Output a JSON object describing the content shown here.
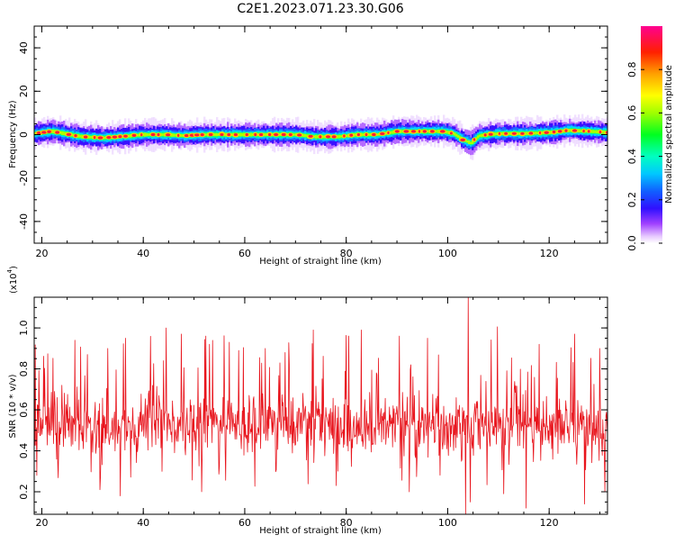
{
  "title": "C2E1.2023.071.23.30.G06",
  "chart_data": [
    {
      "type": "heatmap",
      "xlabel": "Height of straight line (km)",
      "ylabel": "Frequency (Hz)",
      "xlim": [
        18.5,
        131.5
      ],
      "ylim": [
        -50,
        50
      ],
      "xticks": [
        "20",
        "40",
        "60",
        "80",
        "100",
        "120"
      ],
      "xtick_values": [
        20,
        40,
        60,
        80,
        100,
        120
      ],
      "yticks": [
        "40",
        "20",
        "0",
        "-20",
        "-40"
      ],
      "ytick_values": [
        40,
        20,
        0,
        -20,
        -40
      ],
      "colorbar": {
        "label": "Normalized spectral amplitude",
        "range": [
          0,
          1
        ],
        "ticks": [
          "0.0",
          "0.2",
          "0.4",
          "0.6",
          "0.8"
        ],
        "tick_values": [
          0.0,
          0.2,
          0.4,
          0.6,
          0.8
        ]
      },
      "ridge_center_hz": [
        [
          18.5,
          0.5
        ],
        [
          22,
          1.5
        ],
        [
          25,
          0.2
        ],
        [
          28,
          -1.0
        ],
        [
          32,
          -1.5
        ],
        [
          36,
          -0.8
        ],
        [
          40,
          0.0
        ],
        [
          44,
          0.0
        ],
        [
          48,
          -0.5
        ],
        [
          52,
          0.0
        ],
        [
          56,
          0.0
        ],
        [
          60,
          0.0
        ],
        [
          65,
          0.0
        ],
        [
          70,
          0.0
        ],
        [
          74,
          -1.0
        ],
        [
          78,
          -1.0
        ],
        [
          82,
          0.0
        ],
        [
          86,
          0.0
        ],
        [
          90,
          1.5
        ],
        [
          95,
          1.5
        ],
        [
          99,
          1.5
        ],
        [
          101,
          0.5
        ],
        [
          103,
          -2.5
        ],
        [
          104.5,
          -4.0
        ],
        [
          106,
          -0.5
        ],
        [
          110,
          0.5
        ],
        [
          115,
          0.5
        ],
        [
          120,
          1.0
        ],
        [
          124,
          2.0
        ],
        [
          128,
          1.5
        ],
        [
          131.5,
          1.0
        ]
      ]
    },
    {
      "type": "line",
      "xlabel": "Height of straight line (km)",
      "ylabel": "SNR (10 * v/v)",
      "y_multiplier": "(x10",
      "y_multiplier_exp": "4",
      "y_multiplier_close": ")",
      "xlim": [
        18.5,
        131.5
      ],
      "ylim": [
        0.09,
        1.15
      ],
      "xticks": [
        "20",
        "40",
        "60",
        "80",
        "100",
        "120"
      ],
      "xtick_values": [
        20,
        40,
        60,
        80,
        100,
        120
      ],
      "yticks": [
        "0.2",
        "0.4",
        "0.6",
        "0.8",
        "1.0"
      ],
      "ytick_values": [
        0.2,
        0.4,
        0.6,
        0.8,
        1.0
      ],
      "series_color": "#e8141c",
      "series_mean": 0.52,
      "series_range": [
        0.09,
        1.15
      ],
      "peaks": [
        [
          24,
          0.72
        ],
        [
          26.5,
          0.94
        ],
        [
          29,
          0.87
        ],
        [
          33,
          0.9
        ],
        [
          36.5,
          0.95
        ],
        [
          44.5,
          1.0
        ],
        [
          47.5,
          0.97
        ],
        [
          53,
          0.92
        ],
        [
          57,
          0.93
        ],
        [
          64,
          0.9
        ],
        [
          68,
          0.88
        ],
        [
          73.5,
          0.99
        ],
        [
          80.5,
          0.96
        ],
        [
          83,
          0.99
        ],
        [
          90.5,
          0.96
        ],
        [
          96,
          0.95
        ],
        [
          104,
          1.15
        ],
        [
          111,
          0.96
        ],
        [
          115.5,
          1.06
        ],
        [
          118,
          0.92
        ],
        [
          125,
          0.97
        ],
        [
          130,
          0.9
        ]
      ],
      "troughs": [
        [
          19,
          0.28
        ],
        [
          31.5,
          0.21
        ],
        [
          35.5,
          0.18
        ],
        [
          51.5,
          0.2
        ],
        [
          78,
          0.23
        ],
        [
          103.5,
          0.09
        ],
        [
          104.5,
          0.15
        ],
        [
          111,
          0.19
        ],
        [
          115.5,
          0.12
        ],
        [
          127,
          0.14
        ],
        [
          131,
          0.2
        ]
      ]
    }
  ]
}
